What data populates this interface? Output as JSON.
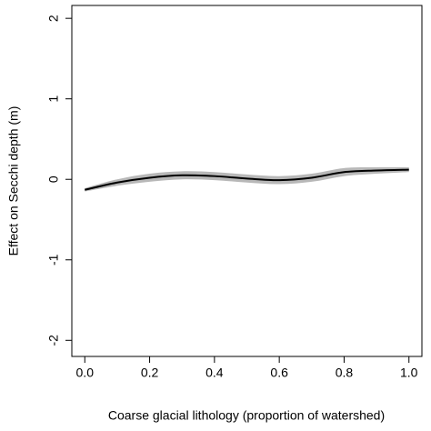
{
  "chart_data": {
    "type": "line",
    "xlabel": "Coarse glacial lithology (proportion of watershed)",
    "ylabel": "Effect on Secchi depth (m)",
    "x": [
      0,
      0.1,
      0.2,
      0.3,
      0.4,
      0.5,
      0.6,
      0.7,
      0.8,
      0.9,
      1.0
    ],
    "series": [
      {
        "color": "#000000",
        "values": [
          -0.13,
          -0.04,
          0.02,
          0.05,
          0.04,
          0.01,
          -0.01,
          0.02,
          0.09,
          0.11,
          0.12
        ]
      }
    ],
    "band": {
      "color": "#b8b8b8",
      "lower": [
        -0.15,
        -0.08,
        -0.03,
        0.0,
        -0.01,
        -0.04,
        -0.06,
        -0.03,
        0.04,
        0.07,
        0.09
      ],
      "upper": [
        -0.11,
        0.0,
        0.07,
        0.1,
        0.09,
        0.06,
        0.04,
        0.07,
        0.14,
        0.15,
        0.15
      ]
    },
    "xlim": [
      -0.04,
      1.04
    ],
    "ylim": [
      -2.2,
      2.16
    ],
    "xticks": [
      {
        "value": 0,
        "label": "0.0"
      },
      0.2,
      0.4,
      0.6,
      0.8,
      {
        "value": 1,
        "label": "1.0"
      }
    ],
    "yticks": [
      -2,
      -1,
      0,
      1,
      2
    ]
  }
}
